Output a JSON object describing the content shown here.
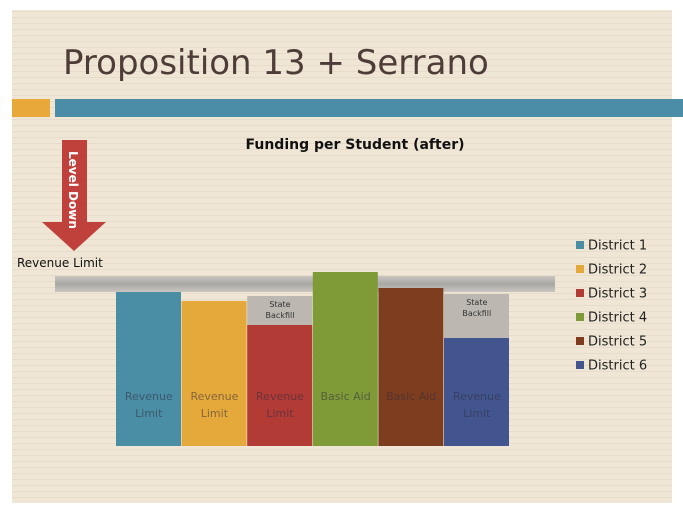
{
  "title": "Proposition 13 + Serrano",
  "chart_data": {
    "type": "bar",
    "title": "Funding per Student (after)",
    "arrow_label": "Level Down",
    "reference_line": {
      "label": "Revenue Limit",
      "value": 162
    },
    "categories": [
      "District 1",
      "District 2",
      "District 3",
      "District 4",
      "District 5",
      "District 6"
    ],
    "colors": [
      "#4a8ea6",
      "#e5a93b",
      "#b23b36",
      "#7f9b38",
      "#7e3d1f",
      "#42558f"
    ],
    "values": [
      154,
      145,
      121,
      174,
      158,
      108
    ],
    "bar_labels": [
      "Revenue Limit",
      "Revenue Limit",
      "Revenue Limit",
      "Basic Aid",
      "Basic Aid",
      "Revenue Limit"
    ],
    "backfill": {
      "name": "State Backfill",
      "color": "#bcb8b1",
      "values": [
        null,
        null,
        29,
        null,
        null,
        44
      ]
    }
  }
}
